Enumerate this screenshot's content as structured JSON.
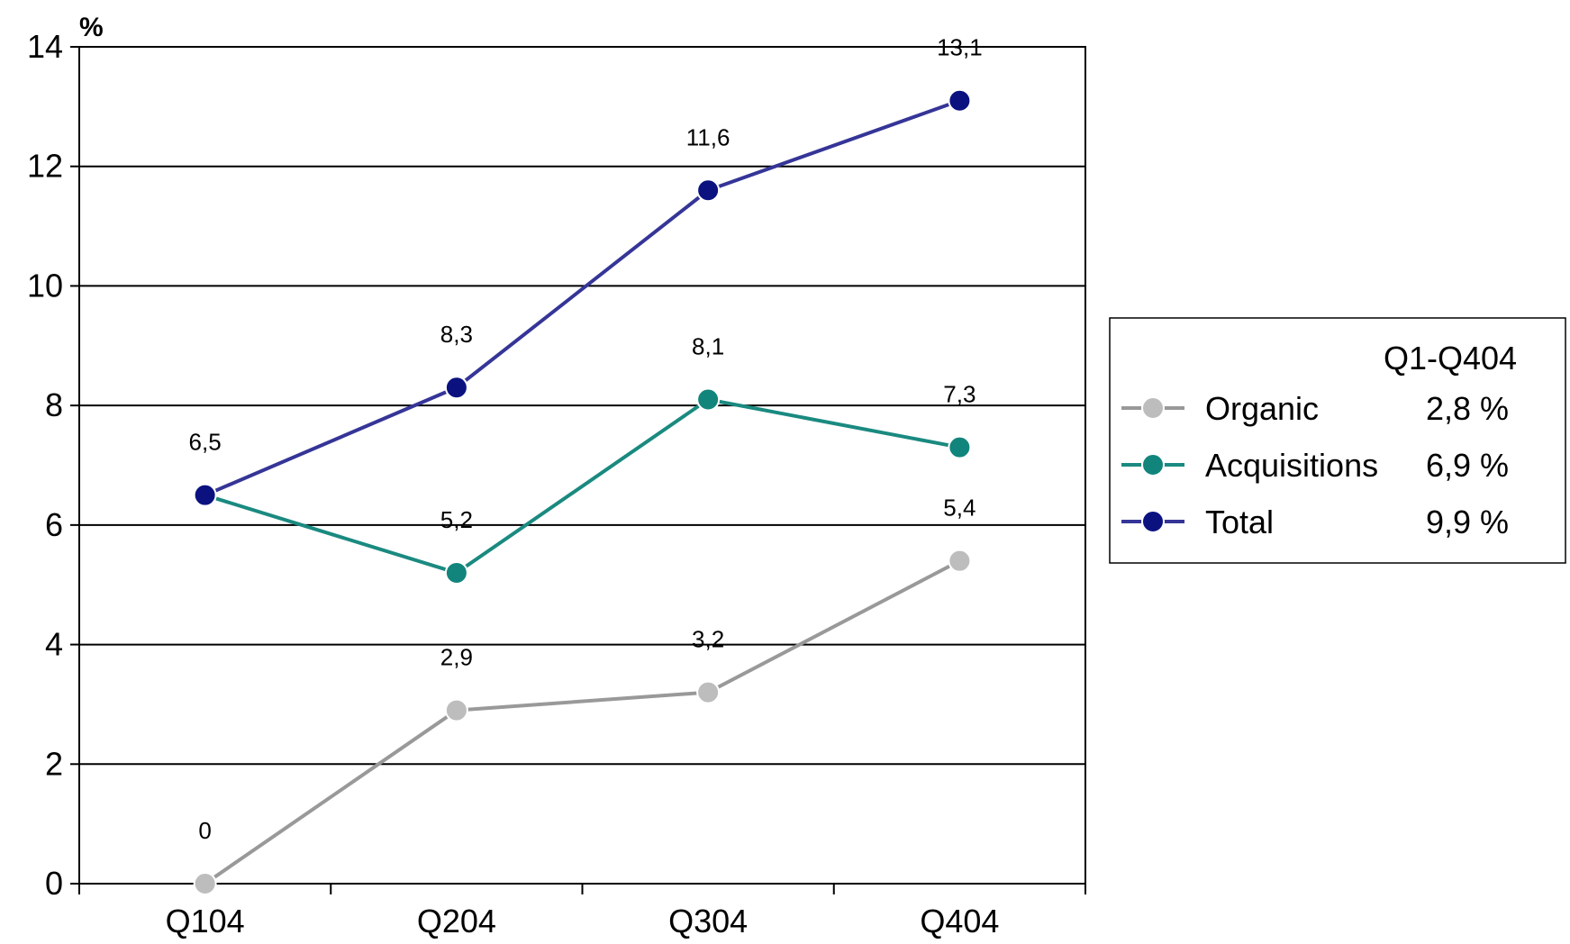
{
  "chart_data": {
    "type": "line",
    "title": "",
    "xlabel": "",
    "ylabel": "%",
    "categories": [
      "Q104",
      "Q204",
      "Q304",
      "Q404"
    ],
    "ylim": [
      0,
      14
    ],
    "yticks": [
      "0",
      "2",
      "4",
      "6",
      "8",
      "10",
      "12",
      "14"
    ],
    "grid": true,
    "legend_position": "right",
    "legend_header": "Q1-Q404",
    "series": [
      {
        "name": "Organic",
        "values": [
          0,
          2.9,
          3.2,
          5.4
        ],
        "labels": [
          "0",
          "2,9",
          "3,2",
          "5,4"
        ],
        "summary": "2,8 %",
        "color": "#999999",
        "marker_color": "#BDBDBD"
      },
      {
        "name": "Acquisitions",
        "values": [
          6.5,
          5.2,
          8.1,
          7.3
        ],
        "labels": [
          "",
          "5,2",
          "8,1",
          "7,3"
        ],
        "summary": "6,9 %",
        "color": "#1A8A80",
        "marker_color": "#11857C"
      },
      {
        "name": "Total",
        "values": [
          6.5,
          8.3,
          11.6,
          13.1
        ],
        "labels": [
          "6,5",
          "8,3",
          "11,6",
          "13,1"
        ],
        "summary": "9,9 %",
        "color": "#353598",
        "marker_color": "#0B1280"
      }
    ]
  }
}
